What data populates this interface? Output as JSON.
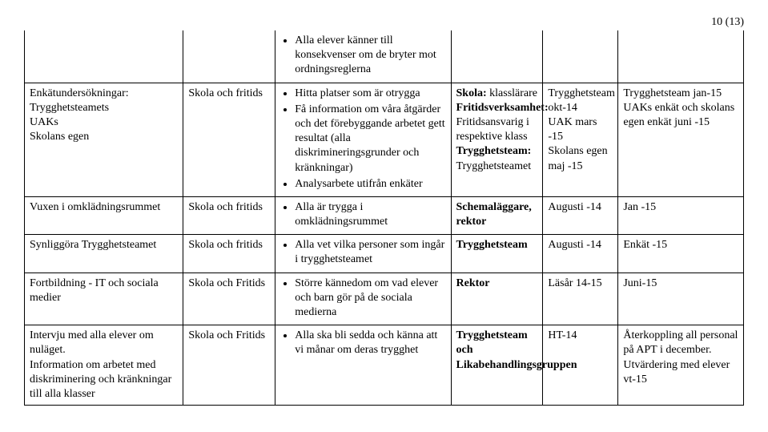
{
  "page_number": "10 (13)",
  "top_bullets": [
    "Alla elever känner till konsekvenser om de bryter mot ordningsreglerna"
  ],
  "rows": [
    {
      "col1": "Enkätundersökningar:\nTrygghetsteamets\nUAKs\nSkolans egen",
      "col2": "Skola och fritids",
      "col3_bullets": [
        "Hitta platser som är otrygga",
        "Få information om våra åtgärder och det förebyggande arbetet gett resultat (alla diskrimineringsgrunder och kränkningar)",
        "Analysarbete utifrån enkäter"
      ],
      "col4_html": "<b>Skola:</b> klasslärare <b>Fritidsverksamhet:</b> Fritidsansvarig i respektive klass <b>Trygghetsteam:</b> Trygghetsteamet",
      "col5": "Trygghetsteam okt-14\nUAK mars -15\nSkolans egen maj -15",
      "col6": "Trygghetsteam jan-15\nUAKs enkät och skolans egen enkät juni -15"
    },
    {
      "col1": "Vuxen i omklädningsrummet",
      "col2": "Skola och fritids",
      "col3_bullets": [
        "Alla är trygga i omklädningsrummet"
      ],
      "col4_html": "<b>Schemaläggare, rektor</b>",
      "col5": "Augusti -14",
      "col6": "Jan -15"
    },
    {
      "col1": "Synliggöra Trygghetsteamet",
      "col2": "Skola och fritids",
      "col3_bullets": [
        "Alla vet vilka personer som ingår i trygghetsteamet"
      ],
      "col4_html": "<b>Trygghetsteam</b>",
      "col5": "Augusti -14",
      "col6": "Enkät -15"
    },
    {
      "col1": "Fortbildning - IT och sociala medier",
      "col2": "Skola och Fritids",
      "col3_bullets": [
        "Större kännedom om vad elever och barn gör på de sociala medierna"
      ],
      "col4_html": "<b>Rektor</b>",
      "col5": "Läsår 14-15",
      "col6": "Juni-15"
    },
    {
      "col1": "Intervju med alla elever om nuläget.\nInformation om arbetet med diskriminering och kränkningar till alla klasser",
      "col2": "Skola och Fritids",
      "col3_bullets": [
        "Alla ska bli sedda och känna att vi månar om deras trygghet"
      ],
      "col4_html": "<b>Trygghetsteam och Likabehandlingsgruppen</b>",
      "col5": "HT-14",
      "col6": "Återkoppling all personal på APT i december.\nUtvärdering med elever vt-15"
    }
  ]
}
